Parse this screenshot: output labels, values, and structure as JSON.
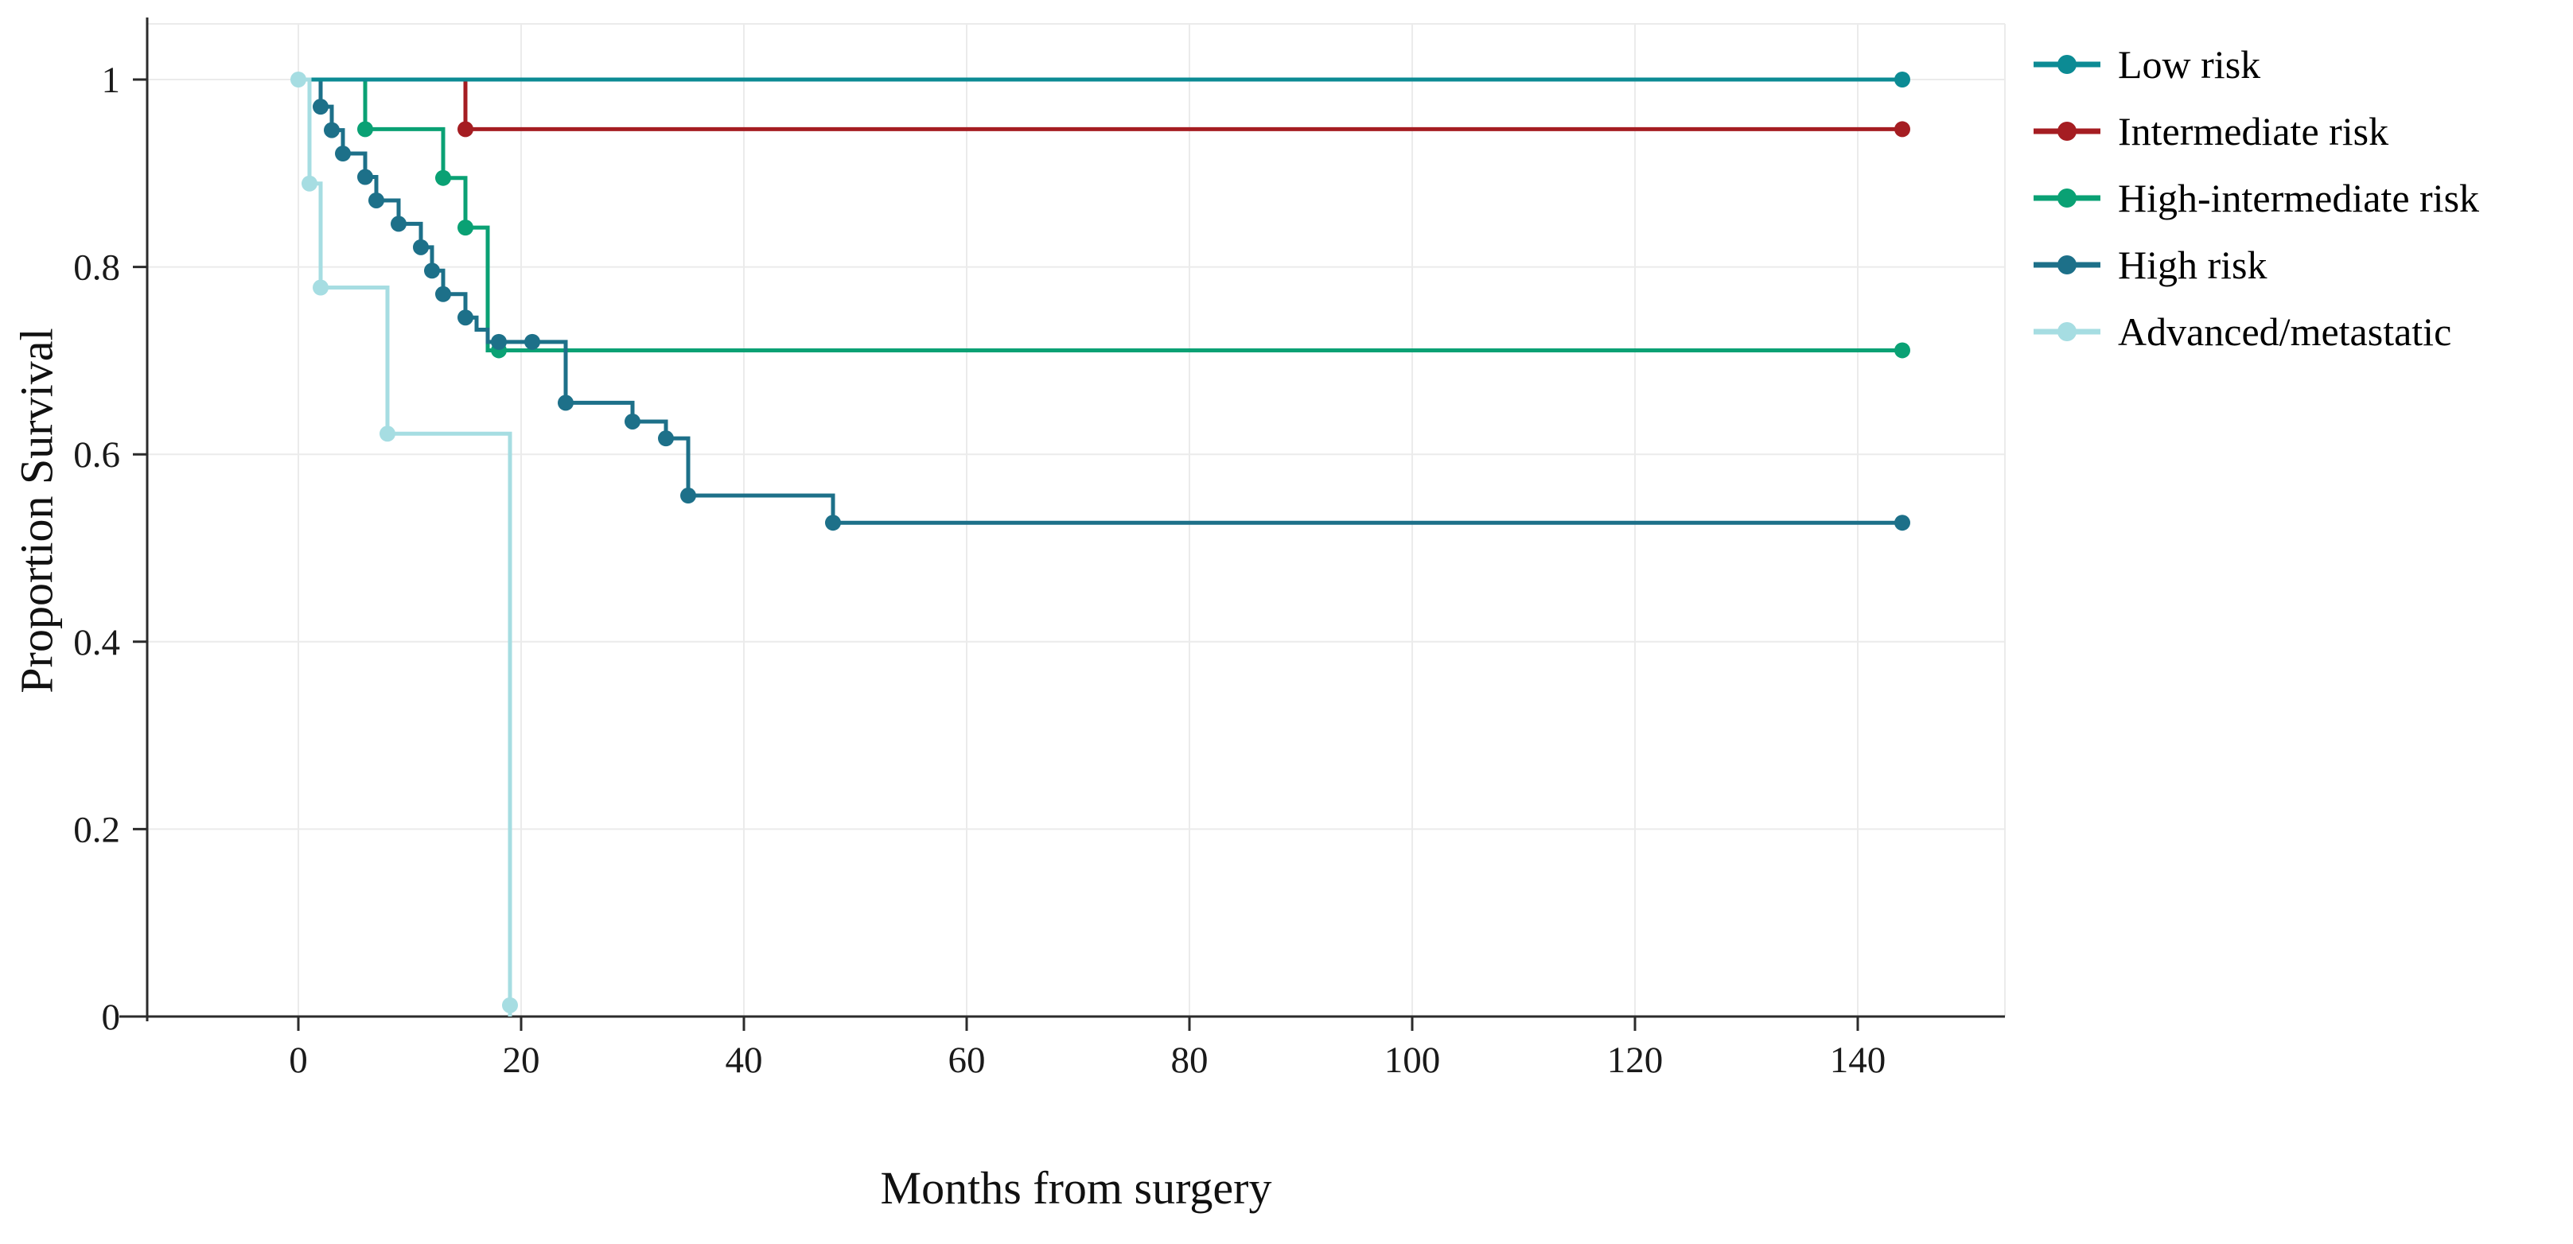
{
  "figure": {
    "background": "#ffffff",
    "axis_color": "#2b2b2b",
    "grid_color": "#ebebeb",
    "text_color": "#1a1a1a"
  },
  "chart_data": {
    "type": "line",
    "subtype": "kaplan-meier-step",
    "title": "",
    "xlabel": "Months from surgery",
    "ylabel": "Proportion Survival",
    "xlim": [
      0,
      150
    ],
    "ylim": [
      0,
      1
    ],
    "xticks": [
      0,
      20,
      40,
      60,
      80,
      100,
      120,
      140
    ],
    "yticks": [
      0,
      0.2,
      0.4,
      0.6,
      0.8,
      1
    ],
    "grid": true,
    "legend_position": "right",
    "draw_order": [
      "Intermediate risk",
      "High-intermediate risk",
      "High risk",
      "Low risk",
      "Advanced/metastatic"
    ],
    "series": [
      {
        "name": "Low risk",
        "color": "#0c8b94",
        "steps": [
          [
            0,
            1
          ],
          [
            144,
            1
          ]
        ],
        "markers": [
          [
            144,
            1
          ]
        ]
      },
      {
        "name": "Intermediate risk",
        "color": "#a51d22",
        "steps": [
          [
            0,
            1
          ],
          [
            15,
            1
          ],
          [
            15,
            0.947
          ],
          [
            144,
            0.947
          ]
        ],
        "markers": [
          [
            15,
            0.947
          ],
          [
            144,
            0.947
          ]
        ]
      },
      {
        "name": "High-intermediate risk",
        "color": "#0aa174",
        "steps": [
          [
            0,
            1
          ],
          [
            6,
            1
          ],
          [
            6,
            0.947
          ],
          [
            13,
            0.947
          ],
          [
            13,
            0.895
          ],
          [
            15,
            0.895
          ],
          [
            15,
            0.842
          ],
          [
            17,
            0.842
          ],
          [
            17,
            0.711
          ],
          [
            144,
            0.711
          ]
        ],
        "markers": [
          [
            6,
            0.947
          ],
          [
            13,
            0.895
          ],
          [
            15,
            0.842
          ],
          [
            18,
            0.711
          ],
          [
            144,
            0.711
          ]
        ]
      },
      {
        "name": "High risk",
        "color": "#1d7089",
        "steps": [
          [
            0,
            1
          ],
          [
            2,
            1
          ],
          [
            2,
            0.971
          ],
          [
            3,
            0.971
          ],
          [
            3,
            0.946
          ],
          [
            4,
            0.946
          ],
          [
            4,
            0.921
          ],
          [
            6,
            0.921
          ],
          [
            6,
            0.896
          ],
          [
            7,
            0.896
          ],
          [
            7,
            0.871
          ],
          [
            9,
            0.871
          ],
          [
            9,
            0.846
          ],
          [
            11,
            0.846
          ],
          [
            11,
            0.821
          ],
          [
            12,
            0.821
          ],
          [
            12,
            0.796
          ],
          [
            13,
            0.796
          ],
          [
            13,
            0.771
          ],
          [
            15,
            0.771
          ],
          [
            15,
            0.746
          ],
          [
            16,
            0.746
          ],
          [
            16,
            0.733
          ],
          [
            17,
            0.733
          ],
          [
            17,
            0.72
          ],
          [
            24,
            0.72
          ],
          [
            24,
            0.655
          ],
          [
            30,
            0.655
          ],
          [
            30,
            0.635
          ],
          [
            33,
            0.635
          ],
          [
            33,
            0.617
          ],
          [
            35,
            0.617
          ],
          [
            35,
            0.556
          ],
          [
            48,
            0.556
          ],
          [
            48,
            0.527
          ],
          [
            144,
            0.527
          ]
        ],
        "markers": [
          [
            2,
            0.971
          ],
          [
            3,
            0.946
          ],
          [
            4,
            0.921
          ],
          [
            6,
            0.896
          ],
          [
            7,
            0.871
          ],
          [
            9,
            0.846
          ],
          [
            11,
            0.821
          ],
          [
            12,
            0.796
          ],
          [
            13,
            0.771
          ],
          [
            15,
            0.746
          ],
          [
            18,
            0.72
          ],
          [
            21,
            0.72
          ],
          [
            24,
            0.655
          ],
          [
            30,
            0.635
          ],
          [
            33,
            0.617
          ],
          [
            35,
            0.556
          ],
          [
            48,
            0.527
          ],
          [
            144,
            0.527
          ]
        ]
      },
      {
        "name": "Advanced/metastatic",
        "color": "#a6dde2",
        "steps": [
          [
            0,
            1
          ],
          [
            1,
            1
          ],
          [
            1,
            0.889
          ],
          [
            2,
            0.889
          ],
          [
            2,
            0.778
          ],
          [
            8,
            0.778
          ],
          [
            8,
            0.622
          ],
          [
            19,
            0.622
          ],
          [
            19,
            0
          ]
        ],
        "markers": [
          [
            0,
            1
          ],
          [
            1,
            0.889
          ],
          [
            2,
            0.778
          ],
          [
            8,
            0.622
          ],
          [
            19,
            0.012
          ]
        ]
      }
    ]
  }
}
